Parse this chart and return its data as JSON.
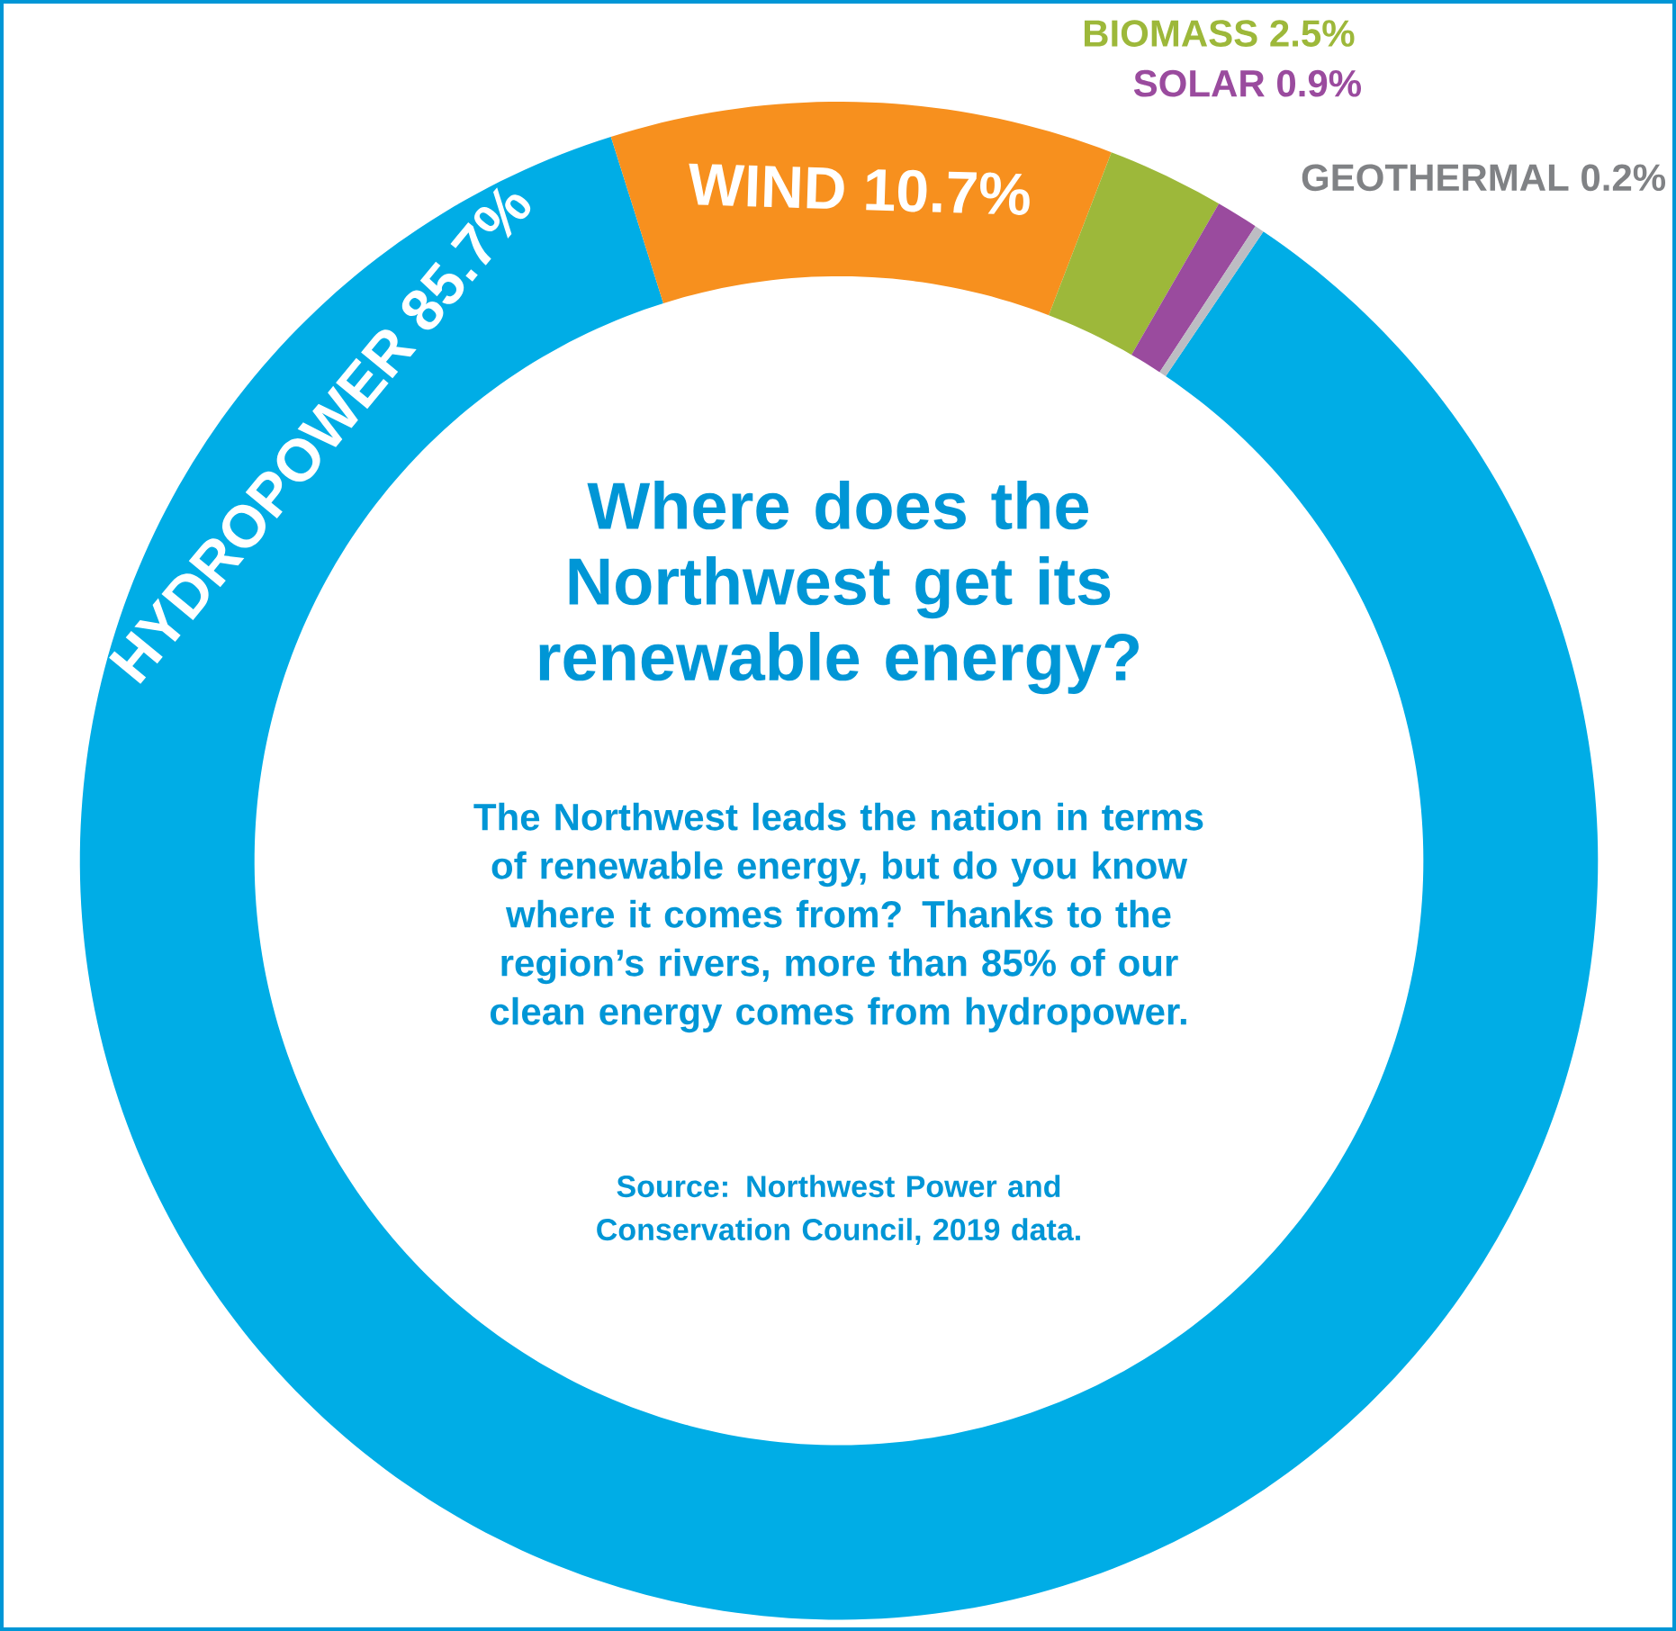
{
  "chart_data": {
    "type": "donut",
    "title": "Where does the Northwest get its renewable energy?",
    "subtitle": "The Northwest leads the nation in terms of renewable energy, but do you know where it comes from? Thanks to the region’s rivers, more than 85% of our clean energy comes from hydropower.",
    "annotations": [
      "Source: Northwest Power and Conservation Council, 2019 data."
    ],
    "categories": [
      "HYDROPOWER",
      "WIND",
      "BIOMASS",
      "SOLAR",
      "GEOTHERMAL"
    ],
    "values": [
      85.7,
      10.7,
      2.5,
      0.9,
      0.2
    ],
    "value_labels": [
      "85.7%",
      "10.7%",
      "2.5%",
      "0.9%",
      "0.2%"
    ],
    "colors": [
      "#00ade6",
      "#f7901e",
      "#9db83a",
      "#9a4b9e",
      "#bdbdc3"
    ]
  }
}
